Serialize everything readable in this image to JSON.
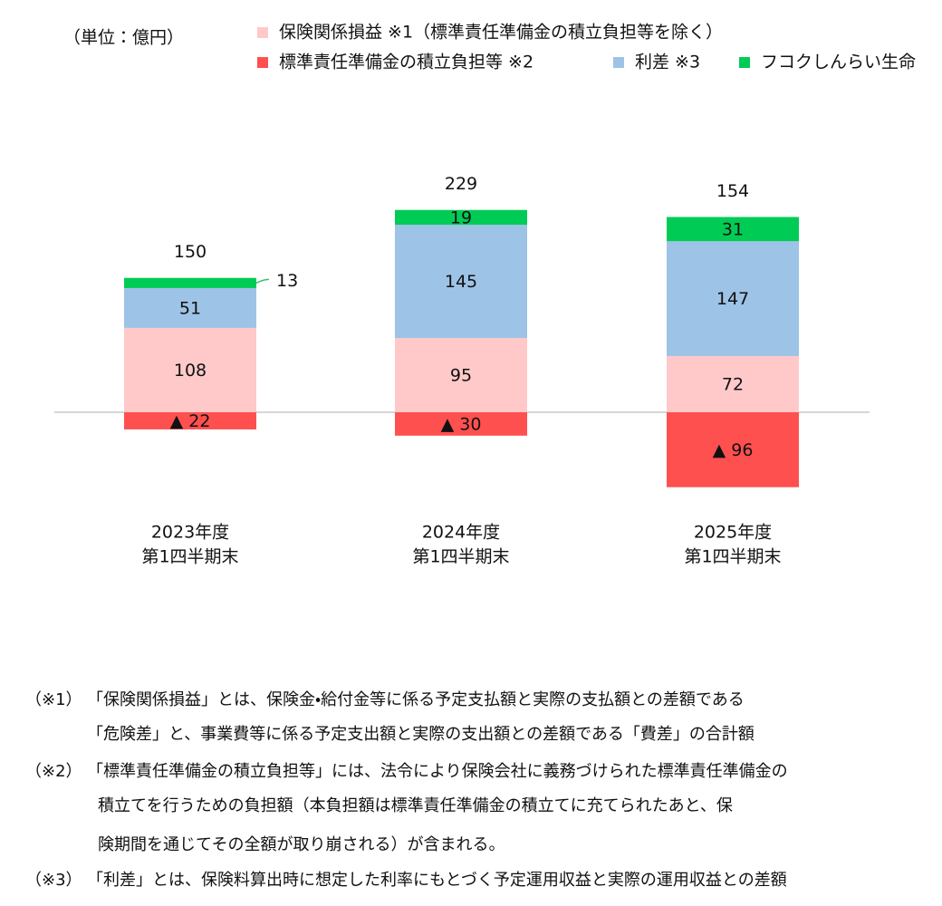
{
  "chart_data": {
    "type": "stacked-bar",
    "unit_label": "（単位：億円）",
    "categories": [
      [
        "2023年度",
        "第1四半期末"
      ],
      [
        "2024年度",
        "第1四半期末"
      ],
      [
        "2025年度",
        "第1四半期末"
      ]
    ],
    "series": [
      {
        "name": "保険関係損益 ※1（標準責任準備金の積立負担等を除く）",
        "color": "#ffc9c9",
        "values": [
          108,
          95,
          72
        ]
      },
      {
        "name": "標準責任準備金の積立負担等 ※2",
        "color": "#ff5050",
        "values": [
          -22,
          -30,
          -96
        ],
        "value_labels": [
          "▲ 22",
          "▲ 30",
          "▲ 96"
        ]
      },
      {
        "name": "利差 ※3",
        "color": "#9dc3e6",
        "values": [
          51,
          145,
          147
        ]
      },
      {
        "name": "フコクしんらい生命",
        "color": "#00cc55",
        "values": [
          13,
          19,
          31
        ]
      }
    ],
    "totals": [
      150,
      229,
      154
    ]
  },
  "notes": [
    {
      "marker": "（※1）",
      "lines": [
        "「保険関係損益」とは、保険金・給付金等に係る予定支払額と実際の支払額との差額である",
        "「危険差」と、事業費等に係る予定支出額と実際の支出額との差額である「費差」の合計額"
      ]
    },
    {
      "marker": "（※2）",
      "lines": [
        "「標準責任準備金の積立負担等」には、法令により保険会社に義務づけられた標準責任準備金の",
        "積立てを行うための負担額（本負担額は標準責任準備金の積立てに充てられたあと、保",
        "険期間を通じてその全額が取り崩される）が含まれる。"
      ]
    },
    {
      "marker": "（※3）",
      "lines": [
        "「利差」とは、保険料算出時に想定した利率にもとづく予定運用収益と実際の運用収益との差額"
      ]
    }
  ]
}
